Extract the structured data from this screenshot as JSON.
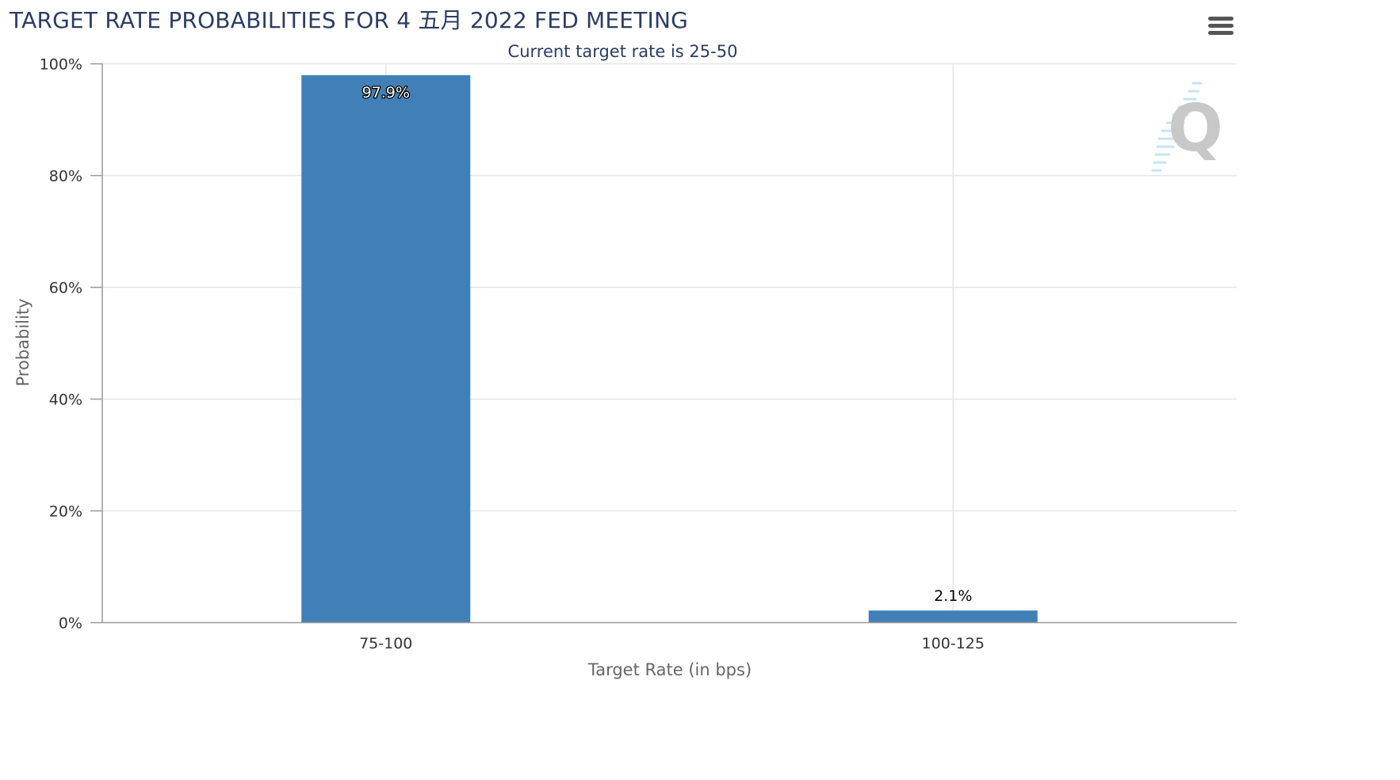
{
  "header": {
    "title": "TARGET RATE PROBABILITIES FOR 4 五月 2022 FED MEETING",
    "subtitle": "Current target rate is 25-50"
  },
  "menu": {
    "icon": "hamburger-menu-icon"
  },
  "watermark": {
    "icon": "q-logo-icon",
    "text": "Q"
  },
  "colors": {
    "bar": "#4180b6",
    "title": "#2c3d63",
    "grid": "#e6e6e6",
    "axis": "#999999"
  },
  "chart_data": {
    "type": "bar",
    "title": "TARGET RATE PROBABILITIES FOR 4 五月 2022 FED MEETING",
    "subtitle": "Current target rate is 25-50",
    "xlabel": "Target Rate (in bps)",
    "ylabel": "Probability",
    "categories": [
      "75-100",
      "100-125"
    ],
    "values": [
      97.9,
      2.1
    ],
    "data_labels": [
      "97.9%",
      "2.1%"
    ],
    "ylim": [
      0,
      100
    ],
    "yticks": [
      0,
      20,
      40,
      60,
      80,
      100
    ],
    "ytick_labels": [
      "0%",
      "20%",
      "40%",
      "60%",
      "80%",
      "100%"
    ],
    "grid": true,
    "legend": "none"
  }
}
